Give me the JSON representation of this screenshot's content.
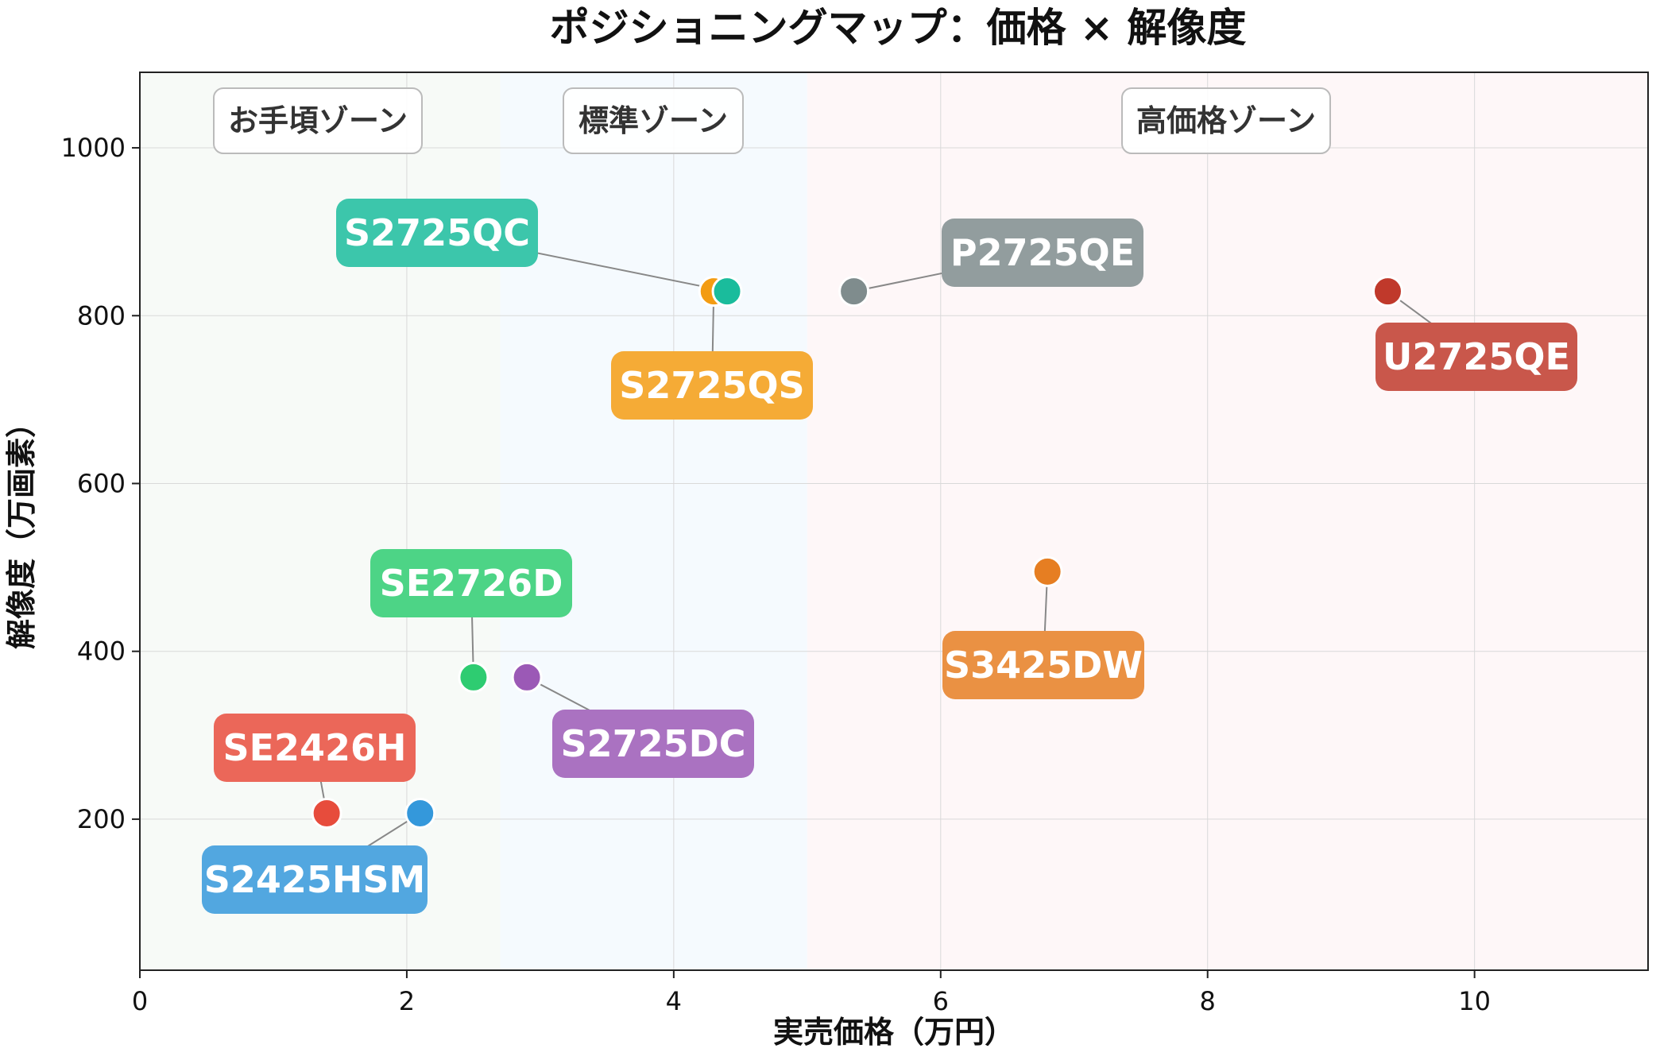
{
  "chart_data": {
    "type": "scatter",
    "title": "ポジショニングマップ：価格 × 解像度",
    "xlabel": "実売価格（万円）",
    "ylabel": "解像度（万画素）",
    "xlim": [
      0,
      11.3
    ],
    "ylim": [
      20,
      1090
    ],
    "xticks": [
      0,
      2,
      4,
      6,
      8,
      10
    ],
    "yticks": [
      200,
      400,
      600,
      800,
      1000
    ],
    "grid": true,
    "zones": [
      {
        "label": "お手頃ゾーン",
        "x_range": [
          0,
          2.7
        ],
        "color": "#e8f0e8"
      },
      {
        "label": "標準ゾーン",
        "x_range": [
          2.7,
          5.0
        ],
        "color": "#e3f1fb"
      },
      {
        "label": "高価格ゾーン",
        "x_range": [
          5.0,
          11.3
        ],
        "color": "#fbe9ea"
      }
    ],
    "points": [
      {
        "label": "SE2426H",
        "x": 1.4,
        "y": 207,
        "color": "#e74c3c"
      },
      {
        "label": "S2425HSM",
        "x": 2.1,
        "y": 207,
        "color": "#3498db"
      },
      {
        "label": "SE2726D",
        "x": 2.5,
        "y": 369,
        "color": "#2ecc71"
      },
      {
        "label": "S2725DC",
        "x": 2.9,
        "y": 369,
        "color": "#9b59b6"
      },
      {
        "label": "S2725QS",
        "x": 4.3,
        "y": 829,
        "color": "#f39c12"
      },
      {
        "label": "S2725QC",
        "x": 4.4,
        "y": 829,
        "color": "#1abc9c"
      },
      {
        "label": "P2725QE",
        "x": 5.35,
        "y": 829,
        "color": "#7f8c8d"
      },
      {
        "label": "S3425DW",
        "x": 6.8,
        "y": 495,
        "color": "#e67e22"
      },
      {
        "label": "U2725QE",
        "x": 9.35,
        "y": 829,
        "color": "#c0392b"
      }
    ]
  }
}
